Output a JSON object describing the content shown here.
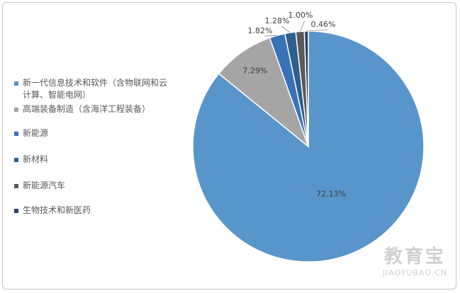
{
  "chart_data": {
    "type": "pie",
    "categories": [
      "新一代信息技术和软件（含物联网和云计算、智能电网）",
      "高端装备制造（含海洋工程装备）",
      "新能源",
      "新材料",
      "新能源汽车",
      "生物技术和新医药"
    ],
    "values": [
      72.13,
      7.29,
      1.82,
      1.28,
      1.0,
      0.46
    ],
    "value_labels": [
      "72.13%",
      "7.29%",
      "1.82%",
      "1.28%",
      "1.00%",
      "0.46%"
    ],
    "colors": [
      "#5895ca",
      "#a5a5a5",
      "#3a72b8",
      "#2f5f8c",
      "#5a5a5a",
      "#2b3f6e"
    ],
    "legend": "left"
  },
  "watermark": {
    "name": "教育宝",
    "url": "JIAOYUBAO.CN"
  }
}
